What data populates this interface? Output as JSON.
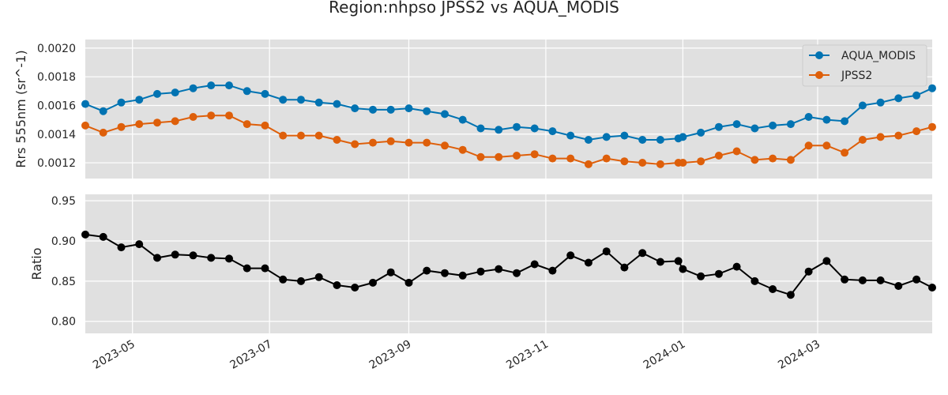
{
  "figure": {
    "title": "Region:nhpso JPSS2 vs AQUA_MODIS",
    "background": "#ffffff",
    "axes_facecolor": "#e0e0e0",
    "grid_color": "#ffffff"
  },
  "chart_data": [
    {
      "type": "line",
      "ylabel": "Rrs 555nm (sr^-1)",
      "xlabel": "",
      "grid": true,
      "legend": "top-right",
      "xlim": [
        "2023-04-10",
        "2024-04-21"
      ],
      "ylim": [
        0.00109,
        0.00206
      ],
      "y_ticks": [
        "0.0012",
        "0.0014",
        "0.0016",
        "0.0018",
        "0.0020"
      ],
      "x": [
        "2023-04-10",
        "2023-04-18",
        "2023-04-26",
        "2023-05-04",
        "2023-05-12",
        "2023-05-20",
        "2023-05-28",
        "2023-06-05",
        "2023-06-13",
        "2023-06-21",
        "2023-06-29",
        "2023-07-07",
        "2023-07-15",
        "2023-07-23",
        "2023-07-31",
        "2023-08-08",
        "2023-08-16",
        "2023-08-24",
        "2023-09-01",
        "2023-09-09",
        "2023-09-17",
        "2023-09-25",
        "2023-10-03",
        "2023-10-11",
        "2023-10-19",
        "2023-10-27",
        "2023-11-04",
        "2023-11-12",
        "2023-11-20",
        "2023-11-28",
        "2023-12-06",
        "2023-12-14",
        "2023-12-22",
        "2023-12-30",
        "2024-01-01",
        "2024-01-09",
        "2024-01-17",
        "2024-01-25",
        "2024-02-02",
        "2024-02-10",
        "2024-02-18",
        "2024-02-26",
        "2024-03-05",
        "2024-03-13",
        "2024-03-21",
        "2024-03-29",
        "2024-04-06",
        "2024-04-14",
        "2024-04-21"
      ],
      "series": [
        {
          "name": "AQUA_MODIS",
          "color": "#0173b2",
          "values": [
            0.00161,
            0.00156,
            0.00162,
            0.00164,
            0.00168,
            0.00169,
            0.00172,
            0.00174,
            0.00174,
            0.0017,
            0.00168,
            0.00164,
            0.00164,
            0.00162,
            0.00161,
            0.00158,
            0.00157,
            0.00157,
            0.00158,
            0.00156,
            0.00154,
            0.0015,
            0.00144,
            0.00143,
            0.00145,
            0.00144,
            0.00142,
            0.00139,
            0.00136,
            0.00138,
            0.00139,
            0.00136,
            0.00136,
            0.00137,
            0.00138,
            0.00141,
            0.00145,
            0.00147,
            0.00144,
            0.00146,
            0.00147,
            0.00152,
            0.0015,
            0.00149,
            0.0016,
            0.00162,
            0.00165,
            0.00167,
            0.00172
          ]
        },
        {
          "name": "JPSS2",
          "color": "#de5f0a",
          "values": [
            0.00146,
            0.00141,
            0.00145,
            0.00147,
            0.00148,
            0.00149,
            0.00152,
            0.00153,
            0.00153,
            0.00147,
            0.00146,
            0.00139,
            0.00139,
            0.00139,
            0.00136,
            0.00133,
            0.00134,
            0.00135,
            0.00134,
            0.00134,
            0.00132,
            0.00129,
            0.00124,
            0.00124,
            0.00125,
            0.00126,
            0.00123,
            0.00123,
            0.00119,
            0.00123,
            0.00121,
            0.0012,
            0.00119,
            0.0012,
            0.0012,
            0.00121,
            0.00125,
            0.00128,
            0.00122,
            0.00123,
            0.00122,
            0.00132,
            0.00132,
            0.00127,
            0.00136,
            0.00138,
            0.00139,
            0.00142,
            0.00145
          ]
        }
      ]
    },
    {
      "type": "line",
      "ylabel": "Ratio",
      "xlabel": "",
      "grid": true,
      "xlim": [
        "2023-04-10",
        "2024-04-21"
      ],
      "ylim": [
        0.785,
        0.958
      ],
      "y_ticks": [
        "0.80",
        "0.85",
        "0.90",
        "0.95"
      ],
      "x_ticks": [
        {
          "date": "2023-05-01",
          "label": "2023-05"
        },
        {
          "date": "2023-07-01",
          "label": "2023-07"
        },
        {
          "date": "2023-09-01",
          "label": "2023-09"
        },
        {
          "date": "2023-11-01",
          "label": "2023-11"
        },
        {
          "date": "2024-01-01",
          "label": "2024-01"
        },
        {
          "date": "2024-03-01",
          "label": "2024-03"
        }
      ],
      "x": [
        "2023-04-10",
        "2023-04-18",
        "2023-04-26",
        "2023-05-04",
        "2023-05-12",
        "2023-05-20",
        "2023-05-28",
        "2023-06-05",
        "2023-06-13",
        "2023-06-21",
        "2023-06-29",
        "2023-07-07",
        "2023-07-15",
        "2023-07-23",
        "2023-07-31",
        "2023-08-08",
        "2023-08-16",
        "2023-08-24",
        "2023-09-01",
        "2023-09-09",
        "2023-09-17",
        "2023-09-25",
        "2023-10-03",
        "2023-10-11",
        "2023-10-19",
        "2023-10-27",
        "2023-11-04",
        "2023-11-12",
        "2023-11-20",
        "2023-11-28",
        "2023-12-06",
        "2023-12-14",
        "2023-12-22",
        "2023-12-30",
        "2024-01-01",
        "2024-01-09",
        "2024-01-17",
        "2024-01-25",
        "2024-02-02",
        "2024-02-10",
        "2024-02-18",
        "2024-02-26",
        "2024-03-05",
        "2024-03-13",
        "2024-03-21",
        "2024-03-29",
        "2024-04-06",
        "2024-04-14",
        "2024-04-21"
      ],
      "series": [
        {
          "color": "#000000",
          "values": [
            0.908,
            0.905,
            0.892,
            0.896,
            0.879,
            0.883,
            0.882,
            0.879,
            0.878,
            0.866,
            0.866,
            0.852,
            0.85,
            0.855,
            0.845,
            0.842,
            0.848,
            0.861,
            0.848,
            0.863,
            0.86,
            0.857,
            0.862,
            0.865,
            0.86,
            0.871,
            0.863,
            0.882,
            0.873,
            0.887,
            0.867,
            0.885,
            0.874,
            0.875,
            0.865,
            0.856,
            0.859,
            0.868,
            0.85,
            0.84,
            0.833,
            0.862,
            0.875,
            0.852,
            0.851,
            0.851,
            0.844,
            0.852,
            0.842
          ]
        }
      ]
    }
  ]
}
